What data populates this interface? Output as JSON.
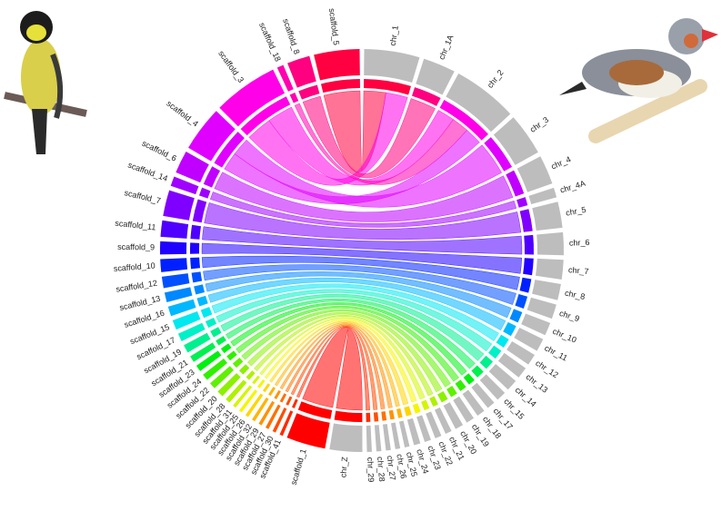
{
  "chart_data": {
    "type": "chord",
    "sectors": [
      {
        "name": "chr_1",
        "size": 17,
        "color": "#bdbdbd"
      },
      {
        "name": "chr_1A",
        "size": 10,
        "color": "#bdbdbd"
      },
      {
        "name": "chr_2",
        "size": 20,
        "color": "#bdbdbd"
      },
      {
        "name": "chr_3",
        "size": 13,
        "color": "#bdbdbd"
      },
      {
        "name": "chr_4",
        "size": 9,
        "color": "#bdbdbd"
      },
      {
        "name": "chr_4A",
        "size": 3,
        "color": "#bdbdbd"
      },
      {
        "name": "chr_5",
        "size": 8,
        "color": "#bdbdbd"
      },
      {
        "name": "chr_6",
        "size": 7,
        "color": "#bdbdbd"
      },
      {
        "name": "chr_7",
        "size": 6,
        "color": "#bdbdbd"
      },
      {
        "name": "chr_8",
        "size": 5,
        "color": "#bdbdbd"
      },
      {
        "name": "chr_9",
        "size": 4.5,
        "color": "#bdbdbd"
      },
      {
        "name": "chr_10",
        "size": 4,
        "color": "#bdbdbd"
      },
      {
        "name": "chr_11",
        "size": 4,
        "color": "#bdbdbd"
      },
      {
        "name": "chr_12",
        "size": 3.5,
        "color": "#bdbdbd"
      },
      {
        "name": "chr_13",
        "size": 3.5,
        "color": "#bdbdbd"
      },
      {
        "name": "chr_14",
        "size": 3.5,
        "color": "#bdbdbd"
      },
      {
        "name": "chr_15",
        "size": 3,
        "color": "#bdbdbd"
      },
      {
        "name": "chr_17",
        "size": 2.5,
        "color": "#bdbdbd"
      },
      {
        "name": "chr_18",
        "size": 2.5,
        "color": "#bdbdbd"
      },
      {
        "name": "chr_19",
        "size": 2.5,
        "color": "#bdbdbd"
      },
      {
        "name": "chr_20",
        "size": 2.5,
        "color": "#bdbdbd"
      },
      {
        "name": "chr_21",
        "size": 2,
        "color": "#bdbdbd"
      },
      {
        "name": "chr_22",
        "size": 2,
        "color": "#bdbdbd"
      },
      {
        "name": "chr_23",
        "size": 2,
        "color": "#bdbdbd"
      },
      {
        "name": "chr_24",
        "size": 2,
        "color": "#bdbdbd"
      },
      {
        "name": "chr_25",
        "size": 1.5,
        "color": "#bdbdbd"
      },
      {
        "name": "chr_26",
        "size": 1.5,
        "color": "#bdbdbd"
      },
      {
        "name": "chr_27",
        "size": 1.5,
        "color": "#bdbdbd"
      },
      {
        "name": "chr_28",
        "size": 1.5,
        "color": "#bdbdbd"
      },
      {
        "name": "chr_29",
        "size": 1.5,
        "color": "#bdbdbd"
      },
      {
        "name": "chr_Z",
        "size": 10,
        "color": "#bdbdbd"
      },
      {
        "name": "scaffold_1",
        "size": 12,
        "color": "#ff0000"
      },
      {
        "name": "scaffold_41",
        "size": 1,
        "color": "#ff2a00"
      },
      {
        "name": "scaffold_30",
        "size": 1,
        "color": "#ff4d00"
      },
      {
        "name": "scaffold_27",
        "size": 1,
        "color": "#ff7000"
      },
      {
        "name": "scaffold_29",
        "size": 1,
        "color": "#ff9200"
      },
      {
        "name": "scaffold_32",
        "size": 1,
        "color": "#ffb400"
      },
      {
        "name": "scaffold_26",
        "size": 1,
        "color": "#ffd500"
      },
      {
        "name": "scaffold_25",
        "size": 1,
        "color": "#f5f500"
      },
      {
        "name": "scaffold_31",
        "size": 1,
        "color": "#d4f500"
      },
      {
        "name": "scaffold_28",
        "size": 1.5,
        "color": "#b0f000"
      },
      {
        "name": "scaffold_20",
        "size": 2,
        "color": "#8cf000"
      },
      {
        "name": "scaffold_22",
        "size": 2,
        "color": "#60f000"
      },
      {
        "name": "scaffold_24",
        "size": 2,
        "color": "#30f000"
      },
      {
        "name": "scaffold_23",
        "size": 2,
        "color": "#00f010"
      },
      {
        "name": "scaffold_21",
        "size": 2,
        "color": "#00f050"
      },
      {
        "name": "scaffold_19",
        "size": 2.5,
        "color": "#00f090"
      },
      {
        "name": "scaffold_17",
        "size": 2.5,
        "color": "#00f0c8"
      },
      {
        "name": "scaffold_15",
        "size": 3,
        "color": "#00e8f0"
      },
      {
        "name": "scaffold_16",
        "size": 3,
        "color": "#00b8ff"
      },
      {
        "name": "scaffold_13",
        "size": 3,
        "color": "#0088ff"
      },
      {
        "name": "scaffold_12",
        "size": 3.5,
        "color": "#0050ff"
      },
      {
        "name": "scaffold_10",
        "size": 4,
        "color": "#0020ff"
      },
      {
        "name": "scaffold_9",
        "size": 4,
        "color": "#2000ff"
      },
      {
        "name": "scaffold_11",
        "size": 5,
        "color": "#5000ff"
      },
      {
        "name": "scaffold_7",
        "size": 8,
        "color": "#8000ff"
      },
      {
        "name": "scaffold_14",
        "size": 3,
        "color": "#a000ff"
      },
      {
        "name": "scaffold_6",
        "size": 7,
        "color": "#c000ff"
      },
      {
        "name": "scaffold_4",
        "size": 14,
        "color": "#e000ff"
      },
      {
        "name": "scaffold_3",
        "size": 20,
        "color": "#ff00e8"
      },
      {
        "name": "scaffold_18",
        "size": 2,
        "color": "#ff00b0"
      },
      {
        "name": "scaffold_8",
        "size": 7,
        "color": "#ff0080"
      },
      {
        "name": "scaffold_5",
        "size": 14,
        "color": "#ff0040"
      }
    ],
    "links": [
      {
        "source": "scaffold_5",
        "target": "chr_1"
      },
      {
        "source": "scaffold_3",
        "target": "chr_1"
      },
      {
        "source": "scaffold_8",
        "target": "chr_1A"
      },
      {
        "source": "scaffold_3",
        "target": "chr_2"
      },
      {
        "source": "scaffold_18",
        "target": "chr_2"
      },
      {
        "source": "scaffold_4",
        "target": "chr_2"
      },
      {
        "source": "scaffold_4",
        "target": "chr_3"
      },
      {
        "source": "scaffold_6",
        "target": "chr_4"
      },
      {
        "source": "scaffold_14",
        "target": "chr_4A"
      },
      {
        "source": "scaffold_7",
        "target": "chr_5"
      },
      {
        "source": "scaffold_11",
        "target": "chr_6"
      },
      {
        "source": "scaffold_9",
        "target": "chr_7"
      },
      {
        "source": "scaffold_10",
        "target": "chr_8"
      },
      {
        "source": "scaffold_12",
        "target": "chr_9"
      },
      {
        "source": "scaffold_13",
        "target": "chr_10"
      },
      {
        "source": "scaffold_16",
        "target": "chr_11"
      },
      {
        "source": "scaffold_15",
        "target": "chr_12"
      },
      {
        "source": "scaffold_17",
        "target": "chr_13"
      },
      {
        "source": "scaffold_19",
        "target": "chr_14"
      },
      {
        "source": "scaffold_21",
        "target": "chr_15"
      },
      {
        "source": "scaffold_23",
        "target": "chr_17"
      },
      {
        "source": "scaffold_24",
        "target": "chr_18"
      },
      {
        "source": "scaffold_22",
        "target": "chr_19"
      },
      {
        "source": "scaffold_20",
        "target": "chr_20"
      },
      {
        "source": "scaffold_28",
        "target": "chr_21"
      },
      {
        "source": "scaffold_31",
        "target": "chr_22"
      },
      {
        "source": "scaffold_25",
        "target": "chr_23"
      },
      {
        "source": "scaffold_26",
        "target": "chr_24"
      },
      {
        "source": "scaffold_32",
        "target": "chr_25"
      },
      {
        "source": "scaffold_29",
        "target": "chr_26"
      },
      {
        "source": "scaffold_27",
        "target": "chr_27"
      },
      {
        "source": "scaffold_30",
        "target": "chr_28"
      },
      {
        "source": "scaffold_41",
        "target": "chr_29"
      },
      {
        "source": "scaffold_1",
        "target": "chr_Z"
      }
    ]
  }
}
